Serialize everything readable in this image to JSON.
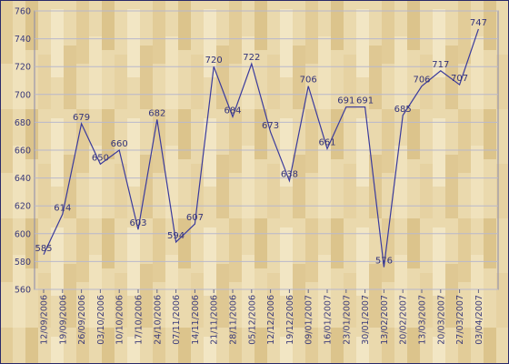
{
  "chart_data": {
    "type": "line",
    "categories": [
      "12/09/2006",
      "19/09/2006",
      "26/09/2006",
      "03/10/2006",
      "10/10/2006",
      "17/10/2006",
      "24/10/2006",
      "07/11/2006",
      "14/11/2006",
      "21/11/2006",
      "28/11/2006",
      "05/12/2006",
      "12/12/2006",
      "19/12/2006",
      "09/01/2007",
      "16/01/2007",
      "23/01/2007",
      "30/01/2007",
      "13/02/2007",
      "20/02/2007",
      "13/03/2007",
      "20/03/2007",
      "27/03/2007",
      "03/04/2007"
    ],
    "values": [
      585,
      614,
      679,
      650,
      660,
      603,
      682,
      594,
      607,
      720,
      684,
      722,
      673,
      638,
      706,
      661,
      691,
      691,
      576,
      685,
      706,
      717,
      707,
      747
    ],
    "color": "#3a3a9c",
    "ylim": [
      560,
      760
    ],
    "yticks": [
      560,
      580,
      600,
      620,
      640,
      660,
      680,
      700,
      720,
      740,
      760
    ],
    "grid": true
  }
}
